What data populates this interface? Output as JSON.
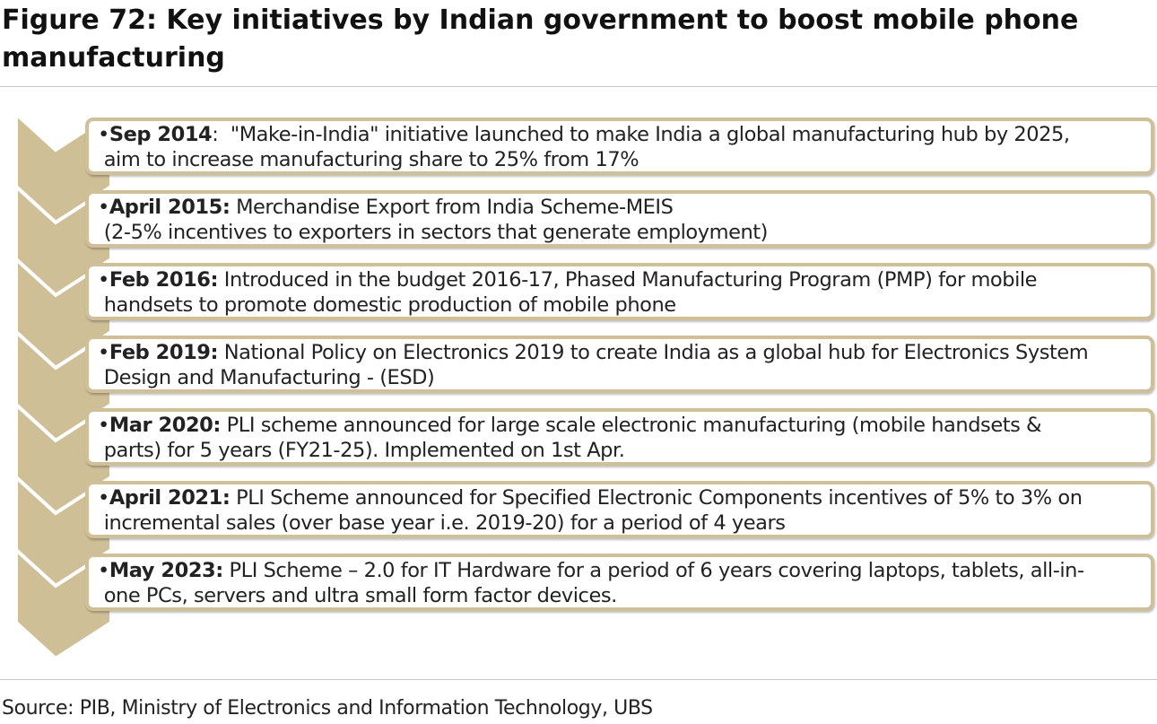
{
  "title": "Figure 72: Key initiatives by Indian government to boost mobile phone manufacturing",
  "colors": {
    "chevron": "#cfbf97",
    "box_border": "#d0c09a"
  },
  "initiatives": [
    {
      "date": "Sep 2014",
      "separator": ":  ",
      "text": "\"Make-in-India\" initiative launched to make India a global manufacturing hub by 2025,\n aim to increase manufacturing share to 25% from 17%"
    },
    {
      "date": "April 2015:",
      "separator": " ",
      "text": "Merchandise Export from India Scheme-MEIS\n (2-5% incentives to exporters in sectors that generate employment)"
    },
    {
      "date": "Feb 2016:",
      "separator": " ",
      "text": "Introduced in the budget 2016-17, Phased Manufacturing Program (PMP) for mobile\n handsets to promote domestic production of mobile phone"
    },
    {
      "date": "Feb 2019:",
      "separator": " ",
      "text": "National Policy on Electronics 2019 to create India as a global hub for Electronics System\n Design and Manufacturing - (ESD)"
    },
    {
      "date": "Mar 2020:",
      "separator": " ",
      "text": "PLI scheme announced for large scale electronic manufacturing (mobile handsets &\n parts) for 5 years (FY21-25). Implemented on 1st Apr."
    },
    {
      "date": "April 2021:",
      "separator": " ",
      "text": "PLI Scheme announced for Specified Electronic Components incentives of 5% to 3% on\n incremental sales (over base year i.e. 2019-20) for a period of 4 years"
    },
    {
      "date": "May 2023:",
      "separator": " ",
      "text": "PLI Scheme – 2.0 for IT Hardware for a period of 6 years covering laptops, tablets, all-in-\n one PCs, servers and ultra small form factor devices."
    }
  ],
  "bullet": "•",
  "source": "Source: PIB, Ministry of Electronics and Information Technology, UBS"
}
